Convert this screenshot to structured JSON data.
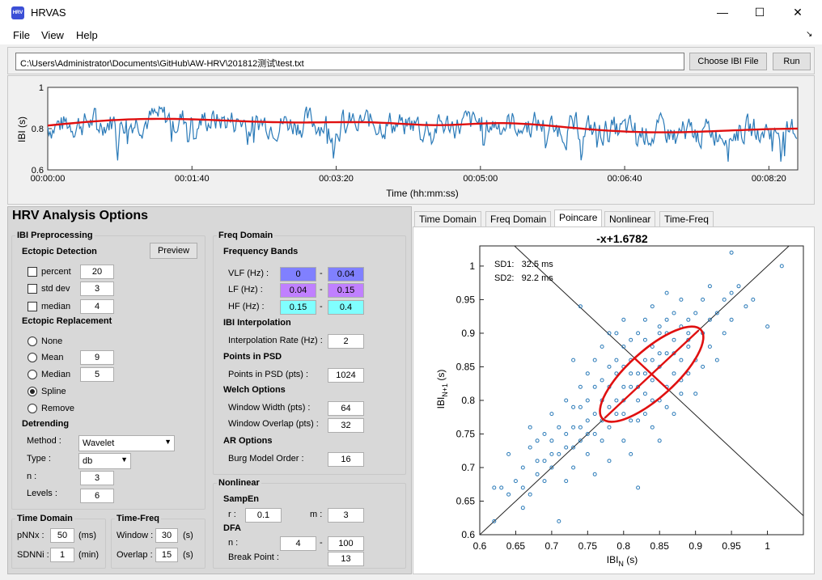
{
  "window": {
    "title": "HRVAS",
    "icon_text": "HRV",
    "minimize": "—",
    "maximize": "☐",
    "close": "✕"
  },
  "menu": [
    "File",
    "View",
    "Help"
  ],
  "file": {
    "path": "C:\\Users\\Administrator\\Documents\\GitHub\\AW-HRV\\201812测试\\test.txt",
    "choose_label": "Choose IBI File",
    "run_label": "Run"
  },
  "ibi_plot": {
    "ylabel": "IBI (s)",
    "xlabel": "Time (hh:mm:ss)",
    "yticks": [
      "1",
      "0.8",
      "0.6"
    ],
    "xticks": [
      "00:00:00",
      "00:01:40",
      "00:03:20",
      "00:05:00",
      "00:06:40",
      "00:08:20"
    ],
    "line_color": "#2a7ab8",
    "trend_color": "#e01010"
  },
  "options": {
    "title": "HRV Analysis Options",
    "ibi_preproc": "IBI Preprocessing",
    "ectopic_detection": "Ectopic Detection",
    "preview_label": "Preview",
    "percent_label": "percent",
    "percent_value": "20",
    "stddev_label": "std dev",
    "stddev_value": "3",
    "median_label": "median",
    "median_value": "4",
    "ectopic_replacement": "Ectopic Replacement",
    "none_label": "None",
    "mean_label": "Mean",
    "mean_value": "9",
    "median_r_label": "Median",
    "median_r_value": "5",
    "spline_label": "Spline",
    "remove_label": "Remove",
    "detrending": "Detrending",
    "method_label": "Method :",
    "method_value": "Wavelet",
    "type_label": "Type :",
    "type_value": "db",
    "n_label": "n :",
    "n_value": "3",
    "levels_label": "Levels :",
    "levels_value": "6",
    "time_domain": "Time Domain",
    "pnnx_label": "pNNx :",
    "pnnx_value": "50",
    "pnnx_unit": "(ms)",
    "sdnni_label": "SDNNi :",
    "sdnni_value": "1",
    "sdnni_unit": "(min)",
    "time_freq": "Time-Freq",
    "window_label": "Window :",
    "window_value": "30",
    "window_unit": "(s)",
    "overlap_label": "Overlap :",
    "overlap_value": "15",
    "overlap_unit": "(s)"
  },
  "freq": {
    "title": "Freq Domain",
    "bands": "Frequency Bands",
    "vlf_label": "VLF (Hz) :",
    "vlf_lo": "0",
    "vlf_hi": "0.04",
    "vlf_color": "#8080ff",
    "lf_label": "LF (Hz) :",
    "lf_lo": "0.04",
    "lf_hi": "0.15",
    "lf_color": "#c080ff",
    "hf_label": "HF (Hz) :",
    "hf_lo": "0.15",
    "hf_hi": "0.4",
    "hf_color": "#80ffff",
    "dash": "-",
    "interp": "IBI Interpolation",
    "interp_rate_label": "Interpolation Rate (Hz) :",
    "interp_rate_value": "2",
    "psd": "Points in PSD",
    "psd_label": "Points in PSD (pts) :",
    "psd_value": "1024",
    "welch": "Welch Options",
    "ww_label": "Window Width (pts) :",
    "ww_value": "64",
    "wo_label": "Window Overlap (pts) :",
    "wo_value": "32",
    "ar": "AR Options",
    "burg_label": "Burg Model Order :",
    "burg_value": "16"
  },
  "nonlinear": {
    "title": "Nonlinear",
    "sampen": "SampEn",
    "r_label": "r :",
    "r_value": "0.1",
    "m_label": "m :",
    "m_value": "3",
    "dfa": "DFA",
    "n_label": "n :",
    "n_lo": "4",
    "n_hi": "100",
    "dash": "-",
    "bp_label": "Break Point :",
    "bp_value": "13"
  },
  "tabs": [
    "Time Domain",
    "Freq Domain",
    "Poincare",
    "Nonlinear",
    "Time-Freq"
  ],
  "active_tab": "Poincare",
  "chart_data": {
    "type": "scatter",
    "title": "-x+1.6782",
    "xlabel": "IBI_N (s)",
    "ylabel": "IBI_N+1 (s)",
    "xlim": [
      0.6,
      1.05
    ],
    "ylim": [
      0.6,
      1.03
    ],
    "xticks": [
      0.6,
      0.65,
      0.7,
      0.75,
      0.8,
      0.85,
      0.9,
      0.95,
      1
    ],
    "yticks": [
      0.6,
      0.65,
      0.7,
      0.75,
      0.8,
      0.85,
      0.9,
      0.95,
      1
    ],
    "annotations": [
      "SD1:   32.5 ms",
      "SD2:   92.2 ms"
    ],
    "ellipse": {
      "center": [
        0.839,
        0.839
      ],
      "sd1": 0.0325,
      "sd2": 0.0922,
      "color": "#e01010"
    },
    "lines": [
      "identity",
      "-x+1.6782"
    ],
    "marker_color": "#2a7ab8",
    "points": [
      [
        0.62,
        0.62
      ],
      [
        0.62,
        0.67
      ],
      [
        0.63,
        0.67
      ],
      [
        0.64,
        0.72
      ],
      [
        0.64,
        0.66
      ],
      [
        0.65,
        0.68
      ],
      [
        0.66,
        0.64
      ],
      [
        0.66,
        0.67
      ],
      [
        0.67,
        0.66
      ],
      [
        0.67,
        0.73
      ],
      [
        0.67,
        0.76
      ],
      [
        0.68,
        0.69
      ],
      [
        0.68,
        0.71
      ],
      [
        0.69,
        0.75
      ],
      [
        0.69,
        0.71
      ],
      [
        0.7,
        0.78
      ],
      [
        0.7,
        0.74
      ],
      [
        0.7,
        0.7
      ],
      [
        0.71,
        0.62
      ],
      [
        0.71,
        0.72
      ],
      [
        0.71,
        0.76
      ],
      [
        0.72,
        0.8
      ],
      [
        0.72,
        0.68
      ],
      [
        0.72,
        0.73
      ],
      [
        0.73,
        0.76
      ],
      [
        0.73,
        0.7
      ],
      [
        0.73,
        0.86
      ],
      [
        0.74,
        0.79
      ],
      [
        0.74,
        0.74
      ],
      [
        0.74,
        0.82
      ],
      [
        0.74,
        0.94
      ],
      [
        0.75,
        0.77
      ],
      [
        0.75,
        0.72
      ],
      [
        0.75,
        0.84
      ],
      [
        0.76,
        0.78
      ],
      [
        0.76,
        0.69
      ],
      [
        0.76,
        0.86
      ],
      [
        0.77,
        0.8
      ],
      [
        0.77,
        0.74
      ],
      [
        0.77,
        0.88
      ],
      [
        0.78,
        0.82
      ],
      [
        0.78,
        0.76
      ],
      [
        0.78,
        0.9
      ],
      [
        0.78,
        0.71
      ],
      [
        0.79,
        0.84
      ],
      [
        0.79,
        0.78
      ],
      [
        0.79,
        0.86
      ],
      [
        0.8,
        0.8
      ],
      [
        0.8,
        0.74
      ],
      [
        0.8,
        0.88
      ],
      [
        0.8,
        0.92
      ],
      [
        0.81,
        0.82
      ],
      [
        0.81,
        0.77
      ],
      [
        0.81,
        0.86
      ],
      [
        0.81,
        0.72
      ],
      [
        0.82,
        0.84
      ],
      [
        0.82,
        0.8
      ],
      [
        0.82,
        0.9
      ],
      [
        0.82,
        0.67
      ],
      [
        0.83,
        0.86
      ],
      [
        0.83,
        0.78
      ],
      [
        0.83,
        0.92
      ],
      [
        0.83,
        0.81
      ],
      [
        0.84,
        0.88
      ],
      [
        0.84,
        0.83
      ],
      [
        0.84,
        0.76
      ],
      [
        0.84,
        0.94
      ],
      [
        0.85,
        0.85
      ],
      [
        0.85,
        0.9
      ],
      [
        0.85,
        0.8
      ],
      [
        0.85,
        0.74
      ],
      [
        0.86,
        0.87
      ],
      [
        0.86,
        0.82
      ],
      [
        0.86,
        0.92
      ],
      [
        0.86,
        0.96
      ],
      [
        0.87,
        0.89
      ],
      [
        0.87,
        0.84
      ],
      [
        0.87,
        0.78
      ],
      [
        0.87,
        0.93
      ],
      [
        0.88,
        0.86
      ],
      [
        0.88,
        0.91
      ],
      [
        0.88,
        0.81
      ],
      [
        0.88,
        0.95
      ],
      [
        0.89,
        0.88
      ],
      [
        0.89,
        0.92
      ],
      [
        0.89,
        0.84
      ],
      [
        0.89,
        0.9
      ],
      [
        0.9,
        0.86
      ],
      [
        0.9,
        0.93
      ],
      [
        0.9,
        0.81
      ],
      [
        0.91,
        0.9
      ],
      [
        0.91,
        0.95
      ],
      [
        0.91,
        0.85
      ],
      [
        0.92,
        0.92
      ],
      [
        0.92,
        0.88
      ],
      [
        0.92,
        0.97
      ],
      [
        0.93,
        0.93
      ],
      [
        0.93,
        0.86
      ],
      [
        0.94,
        0.95
      ],
      [
        0.94,
        0.9
      ],
      [
        0.95,
        0.96
      ],
      [
        0.95,
        0.92
      ],
      [
        0.95,
        1.02
      ],
      [
        0.96,
        0.97
      ],
      [
        0.97,
        0.94
      ],
      [
        0.98,
        0.95
      ],
      [
        1.0,
        0.91
      ],
      [
        1.02,
        1.0
      ],
      [
        0.76,
        0.82
      ],
      [
        0.79,
        0.9
      ],
      [
        0.81,
        0.89
      ],
      [
        0.83,
        0.89
      ],
      [
        0.85,
        0.91
      ],
      [
        0.8,
        0.85
      ],
      [
        0.78,
        0.85
      ],
      [
        0.86,
        0.79
      ],
      [
        0.88,
        0.83
      ],
      [
        0.84,
        0.8
      ],
      [
        0.82,
        0.77
      ],
      [
        0.8,
        0.78
      ],
      [
        0.77,
        0.83
      ],
      [
        0.75,
        0.8
      ],
      [
        0.73,
        0.79
      ],
      [
        0.72,
        0.75
      ],
      [
        0.7,
        0.72
      ],
      [
        0.69,
        0.68
      ],
      [
        0.68,
        0.74
      ],
      [
        0.66,
        0.7
      ],
      [
        0.74,
        0.76
      ],
      [
        0.76,
        0.75
      ],
      [
        0.79,
        0.8
      ],
      [
        0.81,
        0.84
      ],
      [
        0.83,
        0.84
      ],
      [
        0.85,
        0.87
      ],
      [
        0.87,
        0.87
      ],
      [
        0.89,
        0.89
      ],
      [
        0.86,
        0.9
      ],
      [
        0.84,
        0.86
      ],
      [
        0.82,
        0.82
      ],
      [
        0.8,
        0.82
      ],
      [
        0.78,
        0.79
      ],
      [
        0.77,
        0.77
      ],
      [
        0.75,
        0.75
      ],
      [
        0.73,
        0.73
      ]
    ]
  }
}
